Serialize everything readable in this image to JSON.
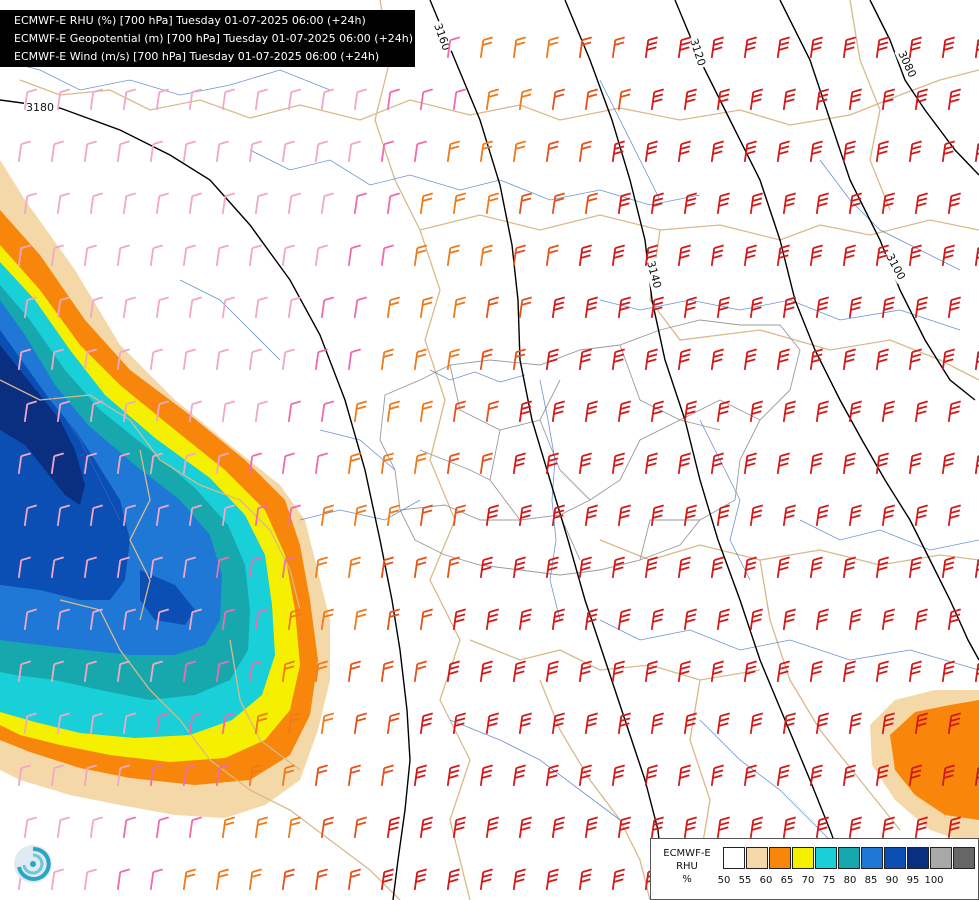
{
  "header": {
    "lines": [
      "ECMWF-E RHU (%) [700 hPa] Tuesday 01-07-2025 06:00 (+24h)",
      "ECMWF-E Geopotential (m) [700 hPa] Tuesday 01-07-2025 06:00 (+24h)",
      "ECMWF-E Wind (m/s) [700 hPa] Tuesday 01-07-2025 06:00 (+24h)"
    ]
  },
  "contours": [
    "3180",
    "3160",
    "3140",
    "3120",
    "3100",
    "3080"
  ],
  "legend": {
    "line1": "ECMWF-E",
    "line2": "RHU",
    "unit": "%",
    "ticks": [
      "50",
      "55",
      "60",
      "65",
      "70",
      "75",
      "80",
      "85",
      "90",
      "95",
      "100"
    ],
    "colors": [
      "#ffffff",
      "#f5d8a8",
      "#f7860a",
      "#f5ef00",
      "#19cfd8",
      "#17a8ae",
      "#1f78d6",
      "#0b4fb5",
      "#0a2f80",
      "#a8a8a8",
      "#666666"
    ]
  },
  "logo": {
    "icon": "ecmwf-swirl-icon"
  }
}
